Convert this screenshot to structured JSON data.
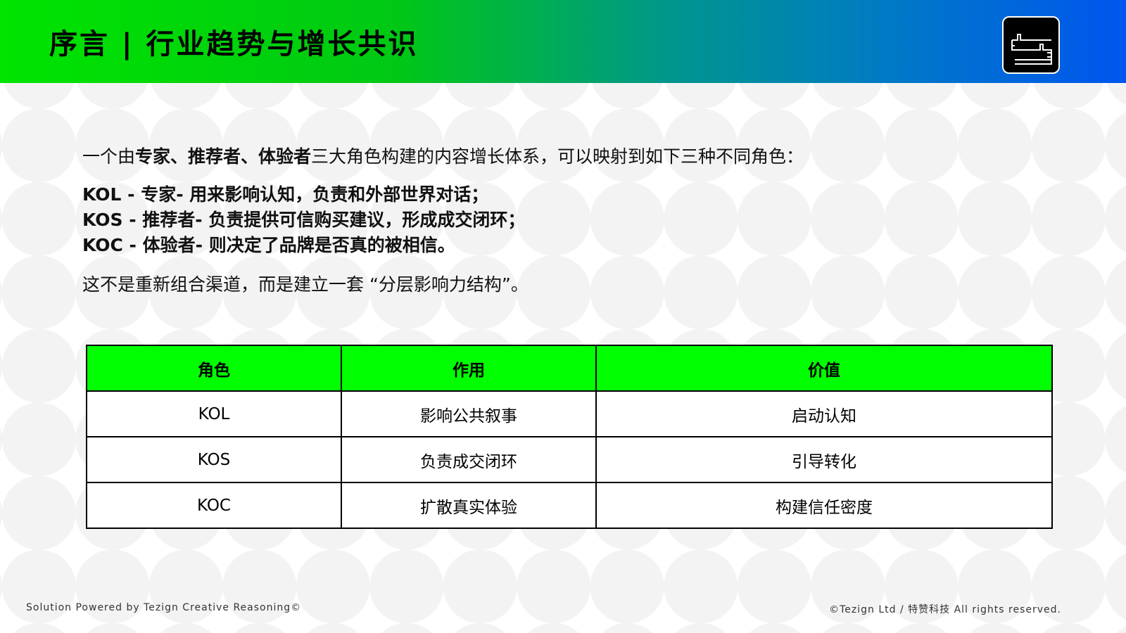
{
  "header": {
    "title": "序言 | 行业趋势与增长共识",
    "logo": "thumbs-up-stacked-logo"
  },
  "intro": {
    "pre": "一个由",
    "bold": "专家、推荐者、体验者",
    "post": "三大角色构建的内容增长体系，可以映射到如下三种不同角色："
  },
  "roles": [
    "KOL - 专家- 用来影响认知，负责和外部世界对话；",
    "KOS - 推荐者- 负责提供可信购买建议，形成成交闭环；",
    "KOC - 体验者- 则决定了品牌是否真的被相信。"
  ],
  "closing": "这不是重新组合渠道，而是建立一套 “分层影响力结构”。",
  "table": {
    "headers": [
      "角色",
      "作用",
      "价值"
    ],
    "rows": [
      [
        "KOL",
        "影响公共叙事",
        "启动认知"
      ],
      [
        "KOS",
        "负责成交闭环",
        "引导转化"
      ],
      [
        "KOC",
        "扩散真实体验",
        "构建信任密度"
      ]
    ]
  },
  "footer": {
    "left": "Solution Powered by Tezign Creative Reasoning©",
    "right": "©Tezign Ltd / 特赞科技 All rights reserved."
  },
  "colors": {
    "accent": "#00ff00",
    "header_start": "#00e400",
    "header_end": "#0055ee"
  }
}
